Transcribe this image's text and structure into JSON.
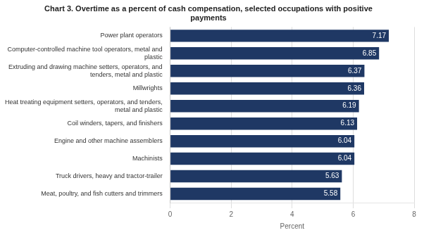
{
  "chart_data": {
    "type": "bar",
    "orientation": "horizontal",
    "title": "Chart 3. Overtime as a percent of cash compensation, selected occupations with positive\npayments",
    "categories": [
      "Meat, poultry, and fish cutters and trimmers",
      "Truck drivers, heavy and tractor-trailer",
      "Machinists",
      "Engine and other machine assemblers",
      "Coil winders, tapers, and finishers",
      "Heat treating equipment setters, operators, and tenders,\nmetal and plastic",
      "Millwrights",
      "Extruding and drawing machine setters, operators, and\ntenders, metal and plastic",
      "Computer-controlled machine tool operators, metal and\nplastic",
      "Power plant operators"
    ],
    "values": [
      5.58,
      5.63,
      6.04,
      6.04,
      6.13,
      6.19,
      6.36,
      6.37,
      6.85,
      7.17
    ],
    "color": "#1F3864",
    "xlabel": "Percent",
    "xlim": [
      0,
      8
    ],
    "xticks": [
      0,
      2,
      4,
      6,
      8
    ],
    "grid": true,
    "data_labels": true
  }
}
